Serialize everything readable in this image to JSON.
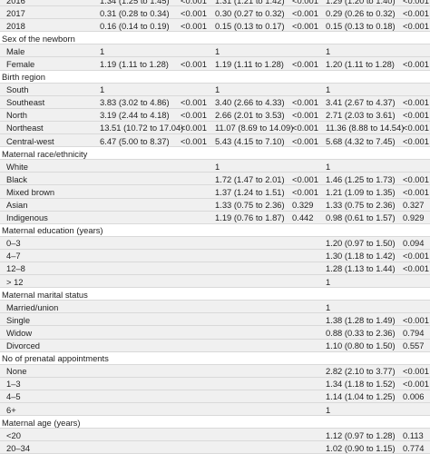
{
  "rows": [
    {
      "type": "item",
      "label": "2016",
      "c1": "1.34 (1.25 to 1.45)",
      "p1": "<0.001",
      "c2": "1.31 (1.21 to 1.42)",
      "p2": "<0.001",
      "c3": "1.29 (1.20 to 1.40)",
      "p3": "<0.001"
    },
    {
      "type": "item",
      "label": "2017",
      "c1": "0.31 (0.28 to 0.34)",
      "p1": "<0.001",
      "c2": "0.30 (0.27 to 0.32)",
      "p2": "<0.001",
      "c3": "0.29 (0.26 to 0.32)",
      "p3": "<0.001"
    },
    {
      "type": "item",
      "label": "2018",
      "c1": "0.16 (0.14 to 0.19)",
      "p1": "<0.001",
      "c2": "0.15 (0.13 to 0.17)",
      "p2": "<0.001",
      "c3": "0.15 (0.13 to 0.18)",
      "p3": "<0.001"
    },
    {
      "type": "header",
      "label": "Sex of the newborn"
    },
    {
      "type": "item",
      "label": "Male",
      "c1": "1",
      "p1": "",
      "c2": "1",
      "p2": "",
      "c3": "1",
      "p3": ""
    },
    {
      "type": "item",
      "label": "Female",
      "c1": "1.19 (1.11 to 1.28)",
      "p1": "<0.001",
      "c2": "1.19 (1.11 to 1.28)",
      "p2": "<0.001",
      "c3": "1.20 (1.11 to 1.28)",
      "p3": "<0.001"
    },
    {
      "type": "header",
      "label": "Birth region"
    },
    {
      "type": "item",
      "label": "South",
      "c1": "1",
      "p1": "",
      "c2": "1",
      "p2": "",
      "c3": "1",
      "p3": ""
    },
    {
      "type": "item",
      "label": "Southeast",
      "c1": "3.83 (3.02 to 4.86)",
      "p1": "<0.001",
      "c2": "3.40 (2.66 to 4.33)",
      "p2": "<0.001",
      "c3": "3.41 (2.67 to 4.37)",
      "p3": "<0.001"
    },
    {
      "type": "item",
      "label": "North",
      "c1": "3.19 (2.44 to 4.18)",
      "p1": "<0.001",
      "c2": "2.66 (2.01 to 3.53)",
      "p2": "<0.001",
      "c3": "2.71 (2.03 to 3.61)",
      "p3": "<0.001"
    },
    {
      "type": "item",
      "label": "Northeast",
      "c1": "13.51 (10.72 to 17.04)",
      "p1": "<0.001",
      "c2": "11.07 (8.69 to 14.09)",
      "p2": "<0.001",
      "c3": "11.36 (8.88 to 14.54)",
      "p3": "<0.001"
    },
    {
      "type": "item",
      "label": "Central-west",
      "c1": "6.47 (5.00 to 8.37)",
      "p1": "<0.001",
      "c2": "5.43 (4.15 to 7.10)",
      "p2": "<0.001",
      "c3": "5.68 (4.32 to 7.45)",
      "p3": "<0.001"
    },
    {
      "type": "header",
      "label": "Maternal race/ethnicity"
    },
    {
      "type": "item",
      "label": "White",
      "c1": "",
      "p1": "",
      "c2": "1",
      "p2": "",
      "c3": "1",
      "p3": ""
    },
    {
      "type": "item",
      "label": "Black",
      "c1": "",
      "p1": "",
      "c2": "1.72 (1.47 to 2.01)",
      "p2": "<0.001",
      "c3": "1.46 (1.25 to 1.73)",
      "p3": "<0.001"
    },
    {
      "type": "item",
      "label": "Mixed brown",
      "c1": "",
      "p1": "",
      "c2": "1.37 (1.24 to 1.51)",
      "p2": "<0.001",
      "c3": "1.21 (1.09 to 1.35)",
      "p3": "<0.001"
    },
    {
      "type": "item",
      "label": "Asian",
      "c1": "",
      "p1": "",
      "c2": "1.33 (0.75 to 2.36)",
      "p2": "0.329",
      "c3": "1.33 (0.75 to 2.36)",
      "p3": "0.327"
    },
    {
      "type": "item",
      "label": "Indigenous",
      "c1": "",
      "p1": "",
      "c2": "1.19 (0.76 to 1.87)",
      "p2": "0.442",
      "c3": "0.98 (0.61 to 1.57)",
      "p3": "0.929"
    },
    {
      "type": "header",
      "label": "Maternal education (years)"
    },
    {
      "type": "item",
      "label": "0–3",
      "c1": "",
      "p1": "",
      "c2": "",
      "p2": "",
      "c3": "1.20 (0.97 to 1.50)",
      "p3": "0.094"
    },
    {
      "type": "item",
      "label": "4–7",
      "c1": "",
      "p1": "",
      "c2": "",
      "p2": "",
      "c3": "1.30 (1.18 to 1.42)",
      "p3": "<0.001"
    },
    {
      "type": "item",
      "label": "12–8",
      "c1": "",
      "p1": "",
      "c2": "",
      "p2": "",
      "c3": "1.28 (1.13 to 1.44)",
      "p3": "<0.001"
    },
    {
      "type": "item",
      "label": "> 12",
      "c1": "",
      "p1": "",
      "c2": "",
      "p2": "",
      "c3": "1",
      "p3": ""
    },
    {
      "type": "header",
      "label": "Maternal marital status"
    },
    {
      "type": "item",
      "label": "Married/union",
      "c1": "",
      "p1": "",
      "c2": "",
      "p2": "",
      "c3": "1",
      "p3": ""
    },
    {
      "type": "item",
      "label": "Single",
      "c1": "",
      "p1": "",
      "c2": "",
      "p2": "",
      "c3": "1.38 (1.28 to 1.49)",
      "p3": "<0.001"
    },
    {
      "type": "item",
      "label": "Widow",
      "c1": "",
      "p1": "",
      "c2": "",
      "p2": "",
      "c3": "0.88 (0.33 to 2.36)",
      "p3": "0.794"
    },
    {
      "type": "item",
      "label": "Divorced",
      "c1": "",
      "p1": "",
      "c2": "",
      "p2": "",
      "c3": "1.10 (0.80 to 1.50)",
      "p3": "0.557"
    },
    {
      "type": "header",
      "label": "No of prenatal appointments"
    },
    {
      "type": "item",
      "label": "None",
      "c1": "",
      "p1": "",
      "c2": "",
      "p2": "",
      "c3": "2.82 (2.10 to 3.77)",
      "p3": "<0.001"
    },
    {
      "type": "item",
      "label": "1–3",
      "c1": "",
      "p1": "",
      "c2": "",
      "p2": "",
      "c3": "1.34 (1.18 to 1.52)",
      "p3": "<0.001"
    },
    {
      "type": "item",
      "label": "4–5",
      "c1": "",
      "p1": "",
      "c2": "",
      "p2": "",
      "c3": "1.14 (1.04 to 1.25)",
      "p3": "0.006"
    },
    {
      "type": "item",
      "label": "6+",
      "c1": "",
      "p1": "",
      "c2": "",
      "p2": "",
      "c3": "1",
      "p3": ""
    },
    {
      "type": "header",
      "label": "Maternal age (years)"
    },
    {
      "type": "item",
      "label": "<20",
      "c1": "",
      "p1": "",
      "c2": "",
      "p2": "",
      "c3": "1.12 (0.97 to 1.28)",
      "p3": "0.113"
    },
    {
      "type": "item",
      "label": "20–34",
      "c1": "",
      "p1": "",
      "c2": "",
      "p2": "",
      "c3": "1.02 (0.90 to 1.15)",
      "p3": "0.774"
    }
  ]
}
